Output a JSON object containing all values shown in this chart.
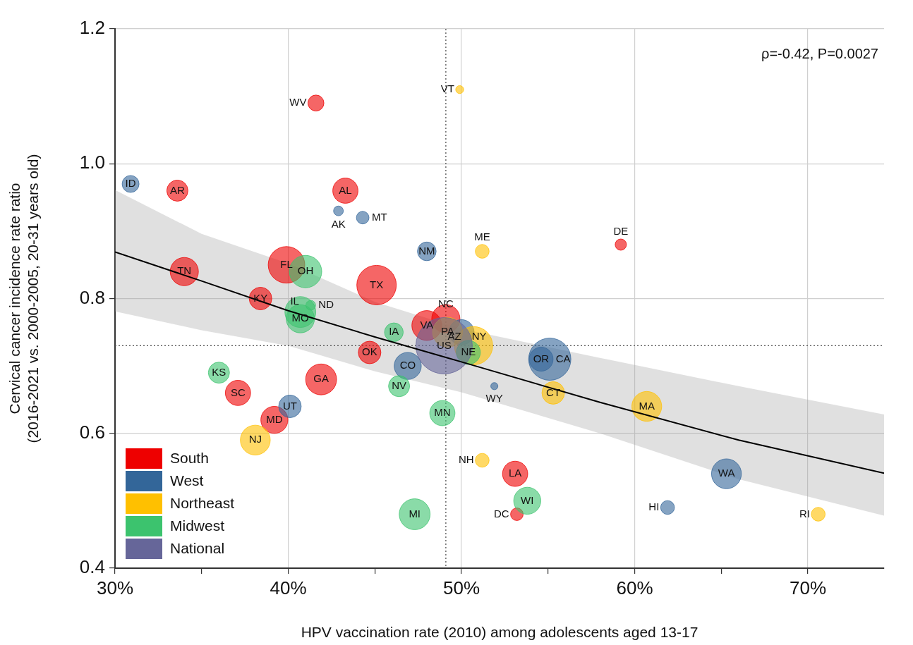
{
  "chart_data": {
    "type": "bubble",
    "xlabel": "HPV vaccination rate (2010) among adolescents aged 13-17",
    "ylabel": "Cervical cancer incidence rate ratio\n(2016-2021 vs. 2000-2005, 20-31 years old)",
    "xlim": [
      30,
      74.4
    ],
    "xticks": [
      {
        "value": 30,
        "label": "30%"
      },
      {
        "value": 35,
        "label": null
      },
      {
        "value": 40,
        "label": "40%"
      },
      {
        "value": 45,
        "label": null
      },
      {
        "value": 50,
        "label": "50%"
      },
      {
        "value": 55,
        "label": null
      },
      {
        "value": 60,
        "label": "60%"
      },
      {
        "value": 65,
        "label": null
      },
      {
        "value": 70,
        "label": "70%"
      }
    ],
    "ylim": [
      0.4,
      1.2
    ],
    "yticks": [
      0.4,
      0.6,
      0.8,
      {
        "value": 1,
        "label": "1.0"
      },
      1.2
    ],
    "grid": true,
    "legend": "bottom left",
    "annotations": [
      "ρ=-0.42, P=0.0027"
    ],
    "ref_lines": [
      {
        "axis": "x",
        "value": 49.1,
        "line_style": "dotted",
        "color": "#555555"
      },
      {
        "axis": "y",
        "value": 0.73,
        "line_style": "dotted",
        "color": "#555555"
      }
    ],
    "series": [
      {
        "name": "South",
        "color": "#ee0000",
        "x": [
          41.6,
          33.6,
          43.3,
          34.0,
          39.9,
          38.4,
          45.1,
          48.0,
          49.1,
          44.7,
          37.1,
          41.9,
          39.2,
          59.2,
          53.1,
          53.2
        ],
        "values": [
          1.09,
          0.96,
          0.96,
          0.84,
          0.85,
          0.8,
          0.82,
          0.76,
          0.77,
          0.72,
          0.66,
          0.68,
          0.62,
          0.88,
          0.54,
          0.48
        ],
        "sizes": [
          0.08,
          0.14,
          0.2,
          0.25,
          0.42,
          0.16,
          0.49,
          0.28,
          0.25,
          0.16,
          0.2,
          0.3,
          0.23,
          0.04,
          0.2,
          0.05
        ],
        "value_labels": [
          "WV",
          "AR",
          "AL",
          "TN",
          "FL",
          "KY",
          "TX",
          "VA",
          "NC",
          "OK",
          "SC",
          "GA",
          "MD",
          "DE",
          "LA",
          "DC"
        ]
      },
      {
        "name": "West",
        "color": "#336699",
        "x": [
          30.9,
          42.9,
          44.3,
          48.0,
          50.0,
          46.9,
          40.1,
          51.9,
          54.6,
          55.1,
          61.9,
          65.3
        ],
        "values": [
          0.97,
          0.93,
          0.92,
          0.87,
          0.75,
          0.7,
          0.64,
          0.67,
          0.71,
          0.71,
          0.49,
          0.54
        ],
        "sizes": [
          0.09,
          0.03,
          0.05,
          0.11,
          0.2,
          0.23,
          0.16,
          0.016,
          0.18,
          0.56,
          0.06,
          0.28
        ],
        "value_labels": [
          "ID",
          "AK",
          "MT",
          "NM",
          "AZ",
          "CO",
          "UT",
          "WY",
          "OR",
          "CA",
          "HI",
          "WA"
        ]
      },
      {
        "name": "Northeast",
        "color": "#ffc000",
        "x": [
          49.9,
          51.2,
          49.2,
          50.7,
          38.1,
          55.3,
          60.7,
          51.2,
          70.6
        ],
        "values": [
          1.11,
          0.87,
          0.75,
          0.73,
          0.59,
          0.66,
          0.64,
          0.56,
          0.48
        ],
        "sizes": [
          0.02,
          0.06,
          0.28,
          0.46,
          0.28,
          0.16,
          0.28,
          0.06,
          0.06
        ],
        "value_labels": [
          "VT",
          "ME",
          "PA",
          "NY",
          "NJ",
          "CT",
          "MA",
          "NH",
          "RI"
        ]
      },
      {
        "name": "Midwest",
        "color": "#3cc36e",
        "x": [
          41.0,
          40.7,
          40.7,
          41.3,
          46.1,
          50.4,
          46.4,
          36.0,
          48.9,
          53.8,
          47.3
        ],
        "values": [
          0.84,
          0.78,
          0.77,
          0.79,
          0.75,
          0.72,
          0.67,
          0.69,
          0.63,
          0.5,
          0.48
        ],
        "sizes": [
          0.33,
          0.3,
          0.25,
          0.03,
          0.11,
          0.18,
          0.14,
          0.14,
          0.2,
          0.23,
          0.3
        ],
        "value_labels": [
          "OH",
          "IL",
          "MO",
          "ND",
          "IA",
          "NE",
          "NV",
          "KS",
          "MN",
          "WI",
          "MI"
        ]
      },
      {
        "name": "National",
        "color": "#666699",
        "x": [
          49.0
        ],
        "values": [
          0.73
        ],
        "sizes": [
          1
        ],
        "value_labels": [
          "US"
        ]
      },
      {
        "type": "line",
        "color": "#000000",
        "x": [
          30,
          35,
          40,
          45,
          50,
          58,
          66,
          74.4
        ],
        "values": [
          0.869,
          0.826,
          0.782,
          0.743,
          0.706,
          0.646,
          0.59,
          0.541
        ],
        "lower": [
          0.781,
          0.753,
          0.73,
          0.692,
          0.661,
          0.6,
          0.532,
          0.478
        ],
        "upper": [
          0.961,
          0.896,
          0.852,
          0.795,
          0.755,
          0.712,
          0.67,
          0.628
        ]
      }
    ]
  }
}
